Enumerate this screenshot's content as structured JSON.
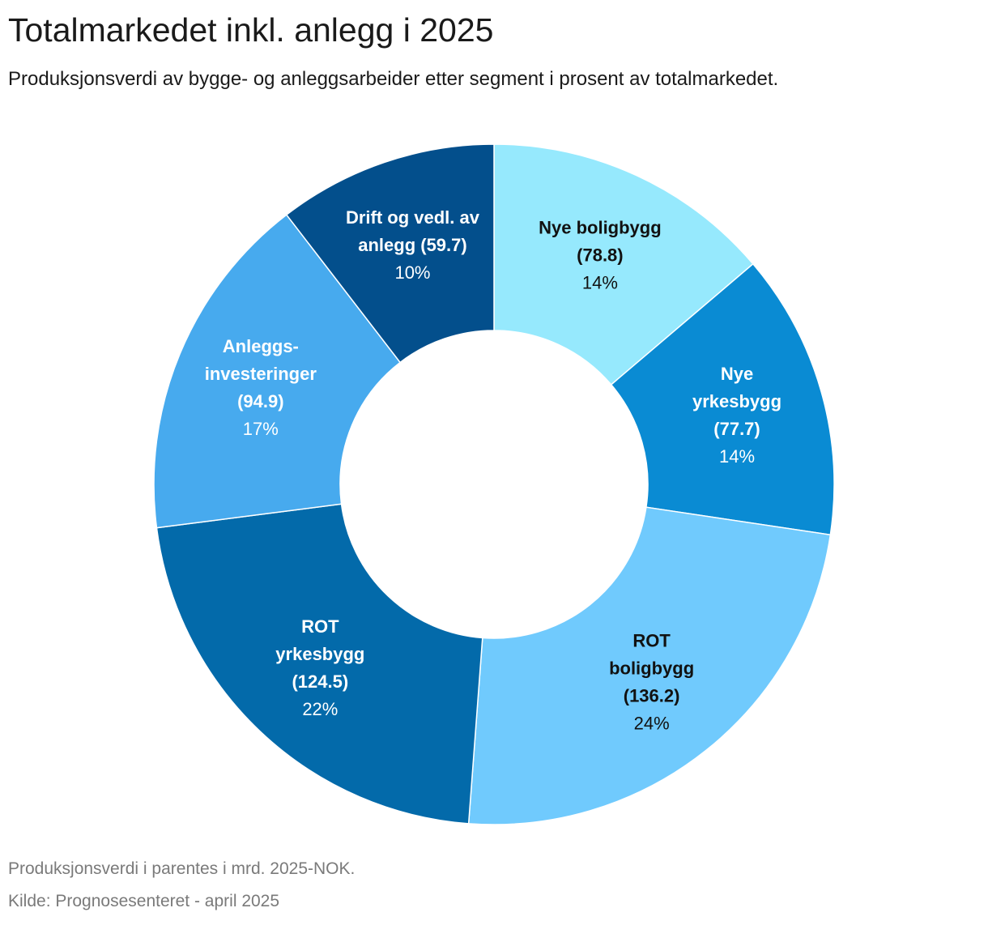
{
  "chart_data": {
    "type": "pie",
    "variant": "donut",
    "title": "Totalmarkedet inkl. anlegg i 2025",
    "subtitle": "Produksjonsverdi av bygge- og anleggsarbeider etter segment i prosent av totalmarkedet.",
    "unit": "mrd. 2025-NOK",
    "slices": [
      {
        "name": "Nye boligbygg",
        "label_lines": [
          "Nye boligbygg",
          "(78.8)"
        ],
        "value": 78.8,
        "value_label": "(78.8)",
        "percent_label": "14%",
        "color": "#96e9fd",
        "text_color": "#111111"
      },
      {
        "name": "Nye yrkesbygg",
        "label_lines": [
          "Nye",
          "yrkesbygg",
          "(77.7)"
        ],
        "value": 77.7,
        "value_label": "(77.7)",
        "percent_label": "14%",
        "color": "#0a8bd3",
        "text_color": "#ffffff"
      },
      {
        "name": "ROT boligbygg",
        "label_lines": [
          "ROT",
          "boligbygg",
          "(136.2)"
        ],
        "value": 136.2,
        "value_label": "(136.2)",
        "percent_label": "24%",
        "color": "#70cafd",
        "text_color": "#111111"
      },
      {
        "name": "ROT yrkesbygg",
        "label_lines": [
          "ROT",
          "yrkesbygg",
          "(124.5)"
        ],
        "value": 124.5,
        "value_label": "(124.5)",
        "percent_label": "22%",
        "color": "#036aaa",
        "text_color": "#ffffff"
      },
      {
        "name": "Anleggsinvesteringer",
        "label_lines": [
          "Anleggs-",
          "investeringer",
          "(94.9)"
        ],
        "value": 94.9,
        "value_label": "(94.9)",
        "percent_label": "17%",
        "color": "#47aaee",
        "text_color": "#ffffff"
      },
      {
        "name": "Drift og vedl. av anlegg",
        "label_lines": [
          "Drift og vedl. av",
          "anlegg (59.7)"
        ],
        "value": 59.7,
        "value_label": "(59.7)",
        "percent_label": "10%",
        "color": "#034f8c",
        "text_color": "#ffffff"
      }
    ]
  },
  "footnotes": {
    "note": "Produksjonsverdi i parentes i mrd. 2025-NOK.",
    "source": "Kilde: Prognosesenteret - april 2025"
  }
}
